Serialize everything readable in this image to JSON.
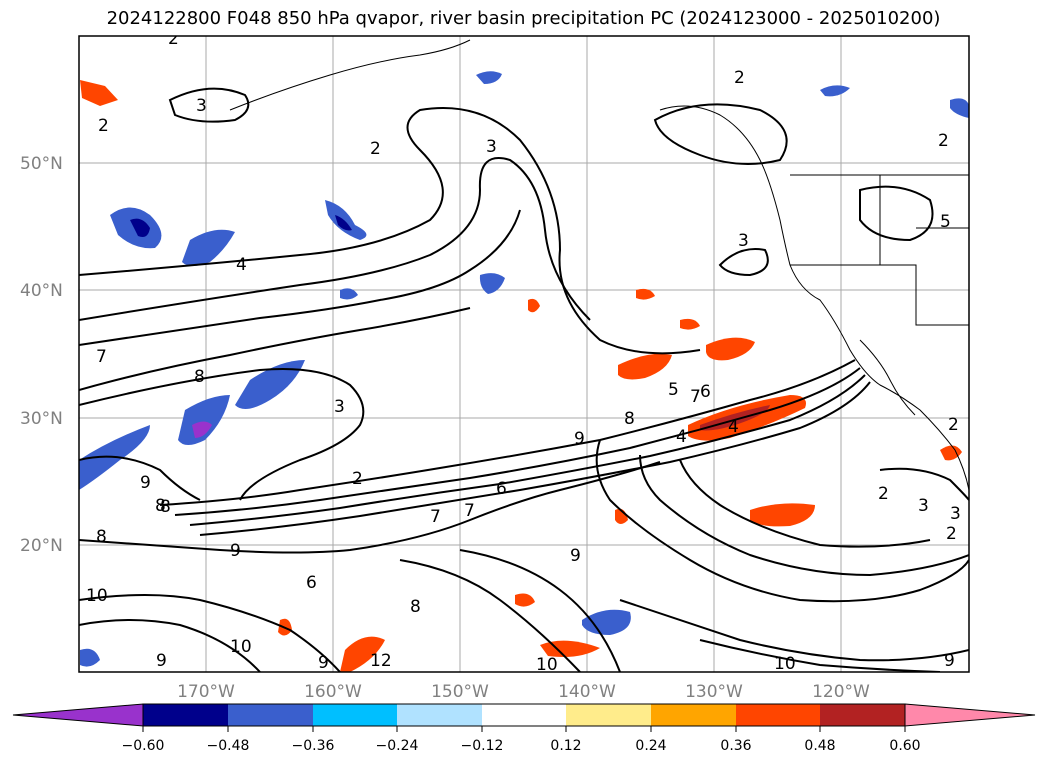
{
  "title": "2024122800 F048 850 hPa qvapor, river basin precipitation PC (2024123000 - 2025010200)",
  "lat_labels": [
    "50°N",
    "40°N",
    "30°N",
    "20°N"
  ],
  "lon_labels": [
    "170°W",
    "160°W",
    "150°W",
    "140°W",
    "130°W",
    "120°W"
  ],
  "colorbar": {
    "ticks": [
      "−0.60",
      "−0.48",
      "−0.36",
      "−0.24",
      "−0.12",
      "0.12",
      "0.24",
      "0.36",
      "0.48",
      "0.60"
    ],
    "colors": [
      "#9932cc",
      "#00008b",
      "#3a5fcd",
      "#00bfff",
      "#b0e2ff",
      "#ffffff",
      "#ffec8b",
      "#ffa500",
      "#ff4500",
      "#b22222",
      "#ff88aa"
    ]
  },
  "contour_labels": [
    "2",
    "3",
    "2",
    "2",
    "3",
    "2",
    "3",
    "2",
    "4",
    "5",
    "7",
    "8",
    "3",
    "8",
    "7",
    "6",
    "9",
    "8",
    "5",
    "4",
    "2",
    "6",
    "9",
    "7",
    "8",
    "9",
    "10",
    "9",
    "10",
    "12",
    "9",
    "10",
    "2",
    "3",
    "2",
    "3",
    "9",
    "4",
    "2",
    "8",
    "6",
    "9",
    "7",
    "10",
    "8"
  ]
}
